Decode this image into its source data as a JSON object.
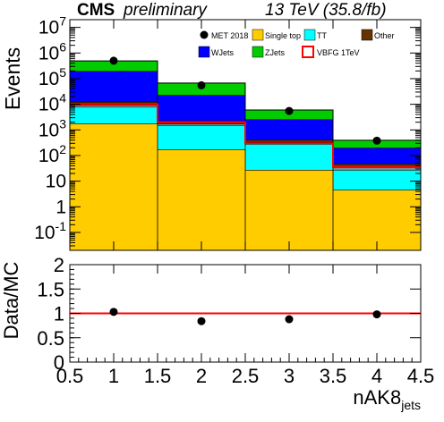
{
  "header": {
    "cms": "CMS",
    "status": "preliminary",
    "lumi": "13 TeV (35.8/fb)"
  },
  "colors": {
    "single_top": "#ffcc00",
    "tt": "#00ffff",
    "other": "#663300",
    "wjets": "#0000ff",
    "zjets": "#00cc00",
    "signal": "#ff0000",
    "ratio_line": "#ff0000",
    "gray_band": "#888888"
  },
  "chart_data": [
    {
      "type": "bar",
      "stacked": true,
      "ylog": true,
      "ylabel": "Events",
      "ylim": [
        0.02,
        20000000
      ],
      "xlim": [
        0.5,
        4.5
      ],
      "yticks": [
        {
          "v": 0.1,
          "label": "10^-1"
        },
        {
          "v": 1,
          "label": "1"
        },
        {
          "v": 10,
          "label": "10"
        },
        {
          "v": 100,
          "label": "10^2"
        },
        {
          "v": 1000,
          "label": "10^3"
        },
        {
          "v": 10000,
          "label": "10^4"
        },
        {
          "v": 100000,
          "label": "10^5"
        },
        {
          "v": 1000000,
          "label": "10^6"
        },
        {
          "v": 10000000,
          "label": "10^7"
        }
      ],
      "bin_edges": [
        0.5,
        1.5,
        2.5,
        3.5,
        4.5
      ],
      "stack": [
        {
          "name": "Single top",
          "color_key": "single_top",
          "values": [
            1700,
            170,
            27,
            4.5
          ]
        },
        {
          "name": "TT",
          "color_key": "tt",
          "values": [
            6000,
            1300,
            250,
            22
          ]
        },
        {
          "name": "",
          "color_key": "gray_band",
          "values": [
            1500,
            250,
            50,
            8
          ]
        },
        {
          "name": "Other",
          "color_key": "other",
          "values": [
            3000,
            500,
            80,
            12
          ]
        },
        {
          "name": "WJets",
          "color_key": "wjets",
          "values": [
            180000,
            20000,
            2100,
            150
          ]
        },
        {
          "name": "ZJets",
          "color_key": "zjets",
          "values": [
            300000,
            45000,
            3500,
            200
          ]
        }
      ],
      "signal": {
        "name": "VBFG 1TeV",
        "values": [
          10000,
          2000,
          300,
          35
        ]
      },
      "data": {
        "name": "MET 2018",
        "x": [
          1,
          2,
          3,
          4
        ],
        "y": [
          500000,
          55000,
          5500,
          380
        ]
      },
      "legend": {
        "placement": "top-right",
        "entries": [
          {
            "label": "MET 2018",
            "kind": "marker"
          },
          {
            "label": "Single top",
            "kind": "fill",
            "color_key": "single_top"
          },
          {
            "label": "TT",
            "kind": "fill",
            "color_key": "tt"
          },
          {
            "label": "Other",
            "kind": "fill",
            "color_key": "other"
          },
          {
            "label": "WJets",
            "kind": "fill",
            "color_key": "wjets"
          },
          {
            "label": "ZJets",
            "kind": "fill",
            "color_key": "zjets"
          },
          {
            "label": "VBFG 1TeV",
            "kind": "line",
            "color_key": "signal"
          }
        ]
      }
    },
    {
      "type": "scatter",
      "ylabel": "Data/MC",
      "xlabel": "nAK8",
      "xlabel_sub": "jets",
      "xlim": [
        0.5,
        4.5
      ],
      "ylim": [
        0,
        2
      ],
      "xticks": [
        "0.5",
        "1",
        "1.5",
        "2",
        "2.5",
        "3",
        "3.5",
        "4",
        "4.5"
      ],
      "yticks": [
        "0",
        "0.5",
        "1",
        "1.5",
        "2"
      ],
      "reference_line": 1,
      "x": [
        1,
        2,
        3,
        4
      ],
      "y": [
        1.03,
        0.84,
        0.88,
        0.98
      ]
    }
  ]
}
